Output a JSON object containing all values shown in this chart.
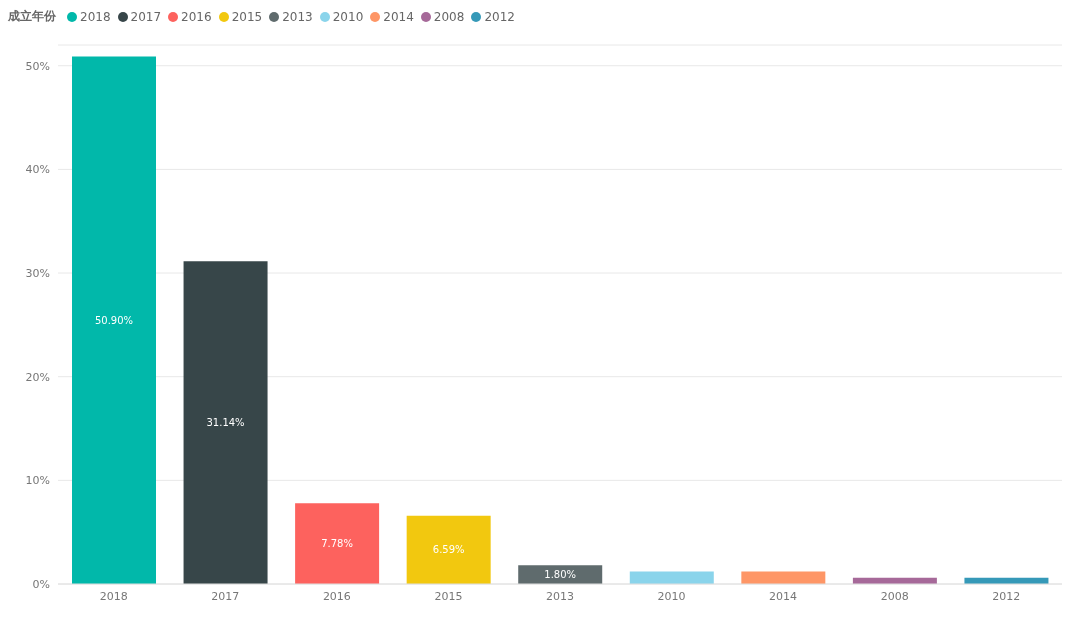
{
  "chart_data": {
    "type": "bar",
    "legend_title": "成立年份",
    "legend": "top left",
    "stacked": true,
    "categories": [
      "2018",
      "2017",
      "2016",
      "2015",
      "2013",
      "2010",
      "2014",
      "2008",
      "2012"
    ],
    "series": [
      {
        "name": "2018",
        "color": "#01b8aa",
        "values": [
          50.9,
          null,
          null,
          null,
          null,
          null,
          null,
          null,
          null
        ],
        "value_labels": [
          "50.90%",
          null,
          null,
          null,
          null,
          null,
          null,
          null,
          null
        ]
      },
      {
        "name": "2017",
        "color": "#374649",
        "values": [
          null,
          31.14,
          null,
          null,
          null,
          null,
          null,
          null,
          null
        ],
        "value_labels": [
          null,
          "31.14%",
          null,
          null,
          null,
          null,
          null,
          null,
          null
        ]
      },
      {
        "name": "2016",
        "color": "#fd625e",
        "values": [
          null,
          null,
          7.78,
          null,
          null,
          null,
          null,
          null,
          null
        ],
        "value_labels": [
          null,
          null,
          "7.78%",
          null,
          null,
          null,
          null,
          null,
          null
        ]
      },
      {
        "name": "2015",
        "color": "#f2c80f",
        "values": [
          null,
          null,
          null,
          6.59,
          null,
          null,
          null,
          null,
          null
        ],
        "value_labels": [
          null,
          null,
          null,
          "6.59%",
          null,
          null,
          null,
          null,
          null
        ]
      },
      {
        "name": "2013",
        "color": "#5f6b6d",
        "values": [
          null,
          null,
          null,
          null,
          1.8,
          null,
          null,
          null,
          null
        ],
        "value_labels": [
          null,
          null,
          null,
          null,
          "1.80%",
          null,
          null,
          null,
          null
        ]
      },
      {
        "name": "2010",
        "color": "#8ad4eb",
        "values": [
          null,
          null,
          null,
          null,
          null,
          1.2,
          null,
          null,
          null
        ]
      },
      {
        "name": "2014",
        "color": "#fe9666",
        "values": [
          null,
          null,
          null,
          null,
          null,
          null,
          1.2,
          null,
          null
        ]
      },
      {
        "name": "2008",
        "color": "#a66999",
        "values": [
          null,
          null,
          null,
          null,
          null,
          null,
          null,
          0.6,
          null
        ]
      },
      {
        "name": "2012",
        "color": "#3599b8",
        "values": [
          null,
          null,
          null,
          null,
          null,
          null,
          null,
          null,
          0.6
        ]
      }
    ],
    "ylim": [
      0,
      52
    ],
    "yticks": [
      {
        "value": 0,
        "label": "0%"
      },
      {
        "value": 10,
        "label": "10%"
      },
      {
        "value": 20,
        "label": "20%"
      },
      {
        "value": 30,
        "label": "30%"
      },
      {
        "value": 40,
        "label": "40%"
      },
      {
        "value": 50,
        "label": "50%"
      }
    ],
    "grid": "y"
  }
}
